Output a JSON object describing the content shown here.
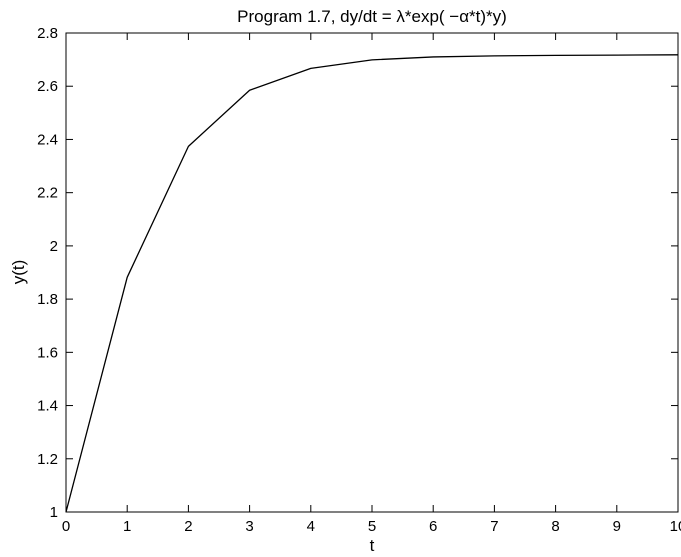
{
  "chart_data": {
    "type": "line",
    "title": "Program 1.7, dy/dt = λ*exp( −α*t)*y)",
    "xlabel": "t",
    "ylabel": "y(t)",
    "xlim": [
      0,
      10
    ],
    "ylim": [
      1,
      2.8
    ],
    "xticks": [
      0,
      1,
      2,
      3,
      4,
      5,
      6,
      7,
      8,
      9,
      10
    ],
    "yticks": [
      1,
      1.2,
      1.4,
      1.6,
      1.8,
      2,
      2.2,
      2.4,
      2.6,
      2.8
    ],
    "xtick_labels": [
      "0",
      "1",
      "2",
      "3",
      "4",
      "5",
      "6",
      "7",
      "8",
      "9",
      "10"
    ],
    "ytick_labels": [
      "1",
      "1.2",
      "1.4",
      "1.6",
      "1.8",
      "2",
      "2.2",
      "2.4",
      "2.6",
      "2.8"
    ],
    "grid": false,
    "series": [
      {
        "x": [
          0,
          1,
          2,
          3,
          4,
          5,
          6,
          7,
          8,
          9,
          10
        ],
        "y": [
          1.0,
          1.882,
          2.374,
          2.585,
          2.667,
          2.699,
          2.71,
          2.714,
          2.716,
          2.717,
          2.718
        ]
      }
    ],
    "line_color": "#000000"
  }
}
